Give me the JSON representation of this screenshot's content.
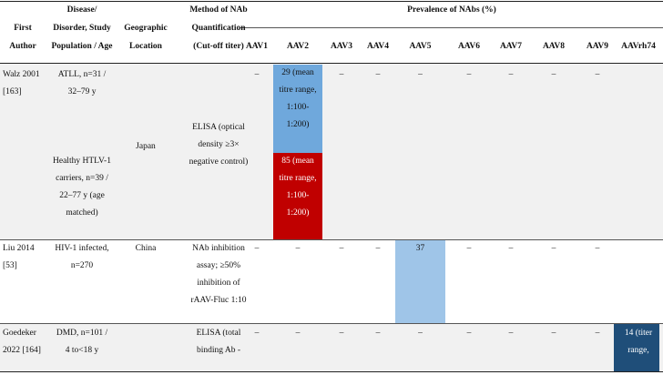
{
  "header": {
    "first_author": [
      "First",
      "Author"
    ],
    "disease": [
      "Disease/",
      "Disorder, Study",
      "Population / Age"
    ],
    "geo": [
      "Geographic",
      "Location"
    ],
    "method": [
      "Method of NAb",
      "Quantification",
      "(Cut-off titer)"
    ],
    "prevalence": "Prevalence of NAbs (%)",
    "serotypes": [
      "AAV1",
      "AAV2",
      "AAV3",
      "AAV4",
      "AAV5",
      "AAV6",
      "AAV7",
      "AAV8",
      "AAV9",
      "AAVrh74"
    ]
  },
  "rows": [
    {
      "author": [
        "Walz 2001",
        "[163]"
      ],
      "sub1_population": [
        "ATLL, n=31 /",
        "32–79 y"
      ],
      "sub2_population": [
        "Healthy HTLV-1",
        "carriers, n=39 /",
        "22–77 y (age",
        "matched)"
      ],
      "geo": "Japan",
      "method": [
        "ELISA (optical",
        "density ≥3×",
        "negative control)"
      ],
      "sub1_values": [
        "–",
        "",
        "–",
        "–",
        "–",
        "–",
        "–",
        "–",
        "–",
        ""
      ],
      "sub1_aav2": [
        "29 (mean",
        "titre range,",
        "1:100-",
        "1:200)"
      ],
      "sub2_aav2": [
        "85 (mean",
        "titre range,",
        "1:100-",
        "1:200)"
      ]
    },
    {
      "author": [
        "Liu 2014",
        "[53]"
      ],
      "population": [
        "HIV-1 infected,",
        "n=270"
      ],
      "geo": "China",
      "method": [
        "NAb inhibition",
        "assay; ≥50%",
        "inhibition of",
        "rAAV-Fluc 1:10"
      ],
      "values": [
        "–",
        "–",
        "–",
        "–",
        "37",
        "–",
        "–",
        "–",
        "–",
        ""
      ]
    },
    {
      "author": [
        "Goedeker",
        "2022 [164]"
      ],
      "population": [
        "DMD, n=101 /",
        "4 to<18 y"
      ],
      "method": [
        "ELISA (total",
        "binding Ab -"
      ],
      "values": [
        "–",
        "–",
        "–",
        "–",
        "–",
        "–",
        "–",
        "–",
        "–",
        ""
      ],
      "aavrh74": [
        "14 (titer",
        "range,"
      ]
    }
  ],
  "colors": {
    "light_blue": "#6fa8dc",
    "pale_blue": "#9fc5e8",
    "red": "#c00000",
    "dark_blue": "#1f4e79",
    "grey_band": "#f1f1f1"
  }
}
